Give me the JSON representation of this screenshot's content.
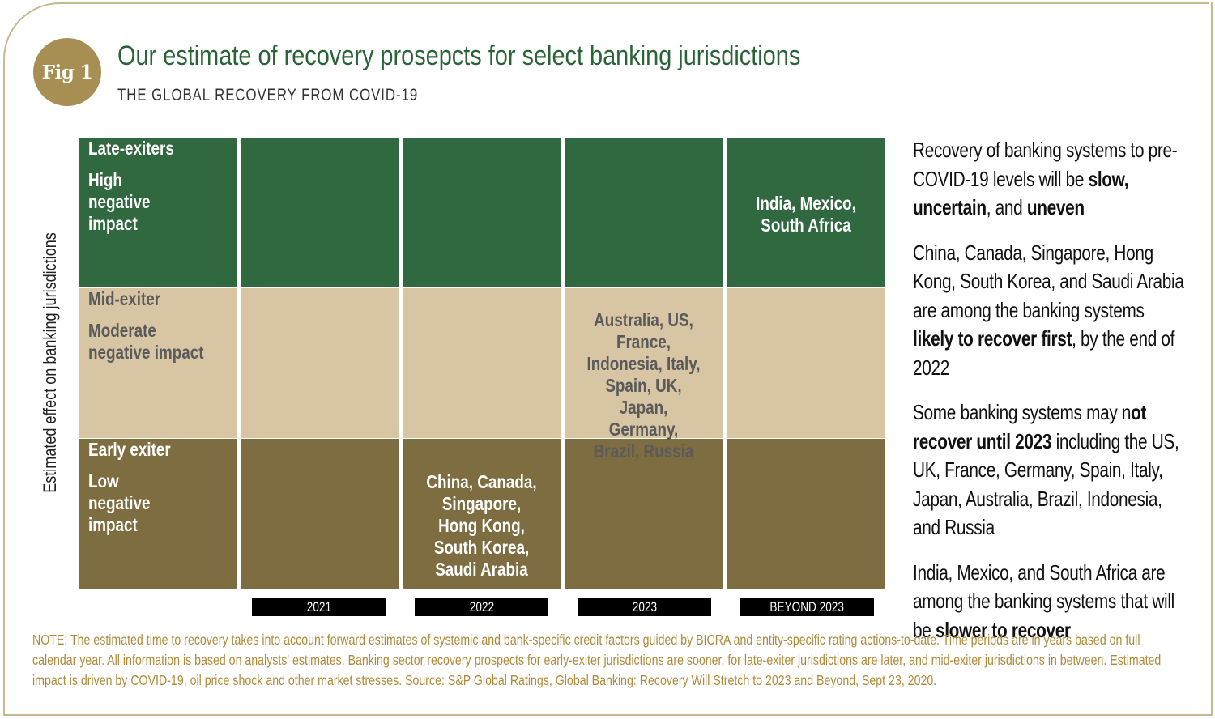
{
  "badge": {
    "text": "Fig 1"
  },
  "header": {
    "title": "Our estimate of recovery prosepcts for select banking jurisdictions",
    "subtitle": "THE GLOBAL RECOVERY FROM COVID-19"
  },
  "y_axis_label": "Estimated effect on banking jurisdictions",
  "rows": [
    {
      "name": "Late-exiters",
      "impact": "High negative impact",
      "cells": [
        "",
        "",
        "",
        "India, Mexico, South Africa"
      ]
    },
    {
      "name": "Mid-exiter",
      "impact": "Moderate negative impact",
      "cells": [
        "",
        "",
        "Australia, US, France, Indonesia, Italy, Spain, UK, Japan, Germany, Brazil, Russia",
        ""
      ]
    },
    {
      "name": "Early exiter",
      "impact": "Low negative impact",
      "cells": [
        "",
        "China, Canada, Singapore, Hong Kong, South Korea, Saudi Arabia",
        "",
        ""
      ]
    }
  ],
  "years": [
    "2021",
    "2022",
    "2023",
    "BEYOND 2023"
  ],
  "sidebar": [
    {
      "parts": [
        {
          "text": "Recovery of banking systems to pre-COVID-19 levels will be ",
          "bold": false
        },
        {
          "text": "slow, uncertain",
          "bold": true
        },
        {
          "text": ", and ",
          "bold": false
        },
        {
          "text": "uneven",
          "bold": true
        }
      ]
    },
    {
      "parts": [
        {
          "text": "China, Canada, Singapore, Hong Kong, South Korea, and Saudi Arabia are among the banking systems ",
          "bold": false
        },
        {
          "text": "likely to recover first",
          "bold": true
        },
        {
          "text": ", by the end of 2022",
          "bold": false
        }
      ]
    },
    {
      "parts": [
        {
          "text": "Some banking systems may n",
          "bold": false
        },
        {
          "text": "ot recover until 2023",
          "bold": true
        },
        {
          "text": " including the US, UK, France, Germany, Spain, Italy, Japan, Australia, Brazil, Indonesia, and Russia",
          "bold": false
        }
      ]
    },
    {
      "parts": [
        {
          "text": "India, Mexico, and South Africa are among the banking systems that will be ",
          "bold": false
        },
        {
          "text": "slower to recover",
          "bold": true
        }
      ]
    }
  ],
  "note": "NOTE: The estimated time to recovery takes into account forward estimates of systemic and bank-specific credit factors guided by BICRA and entity-specific rating actions-to-date. Time periods are in years based on full calendar year. All information is based on analysts' estimates. Banking sector recovery prospects for early-exiter jurisdictions are sooner, for late-exiter jurisdictions are later, and mid-exiter jurisdictions in between. Estimated impact is driven by COVID-19, oil price shock and other market stresses. Source: S&P Global Ratings, Global Banking: Recovery Will Stretch to 2023 and Beyond, Sept 23, 2020.",
  "colors": {
    "late": "#306840",
    "mid": "#d7c5a4",
    "early": "#7e6d40",
    "title": "#2b6339",
    "badge": "#a78e53",
    "note": "#b08a3a"
  }
}
